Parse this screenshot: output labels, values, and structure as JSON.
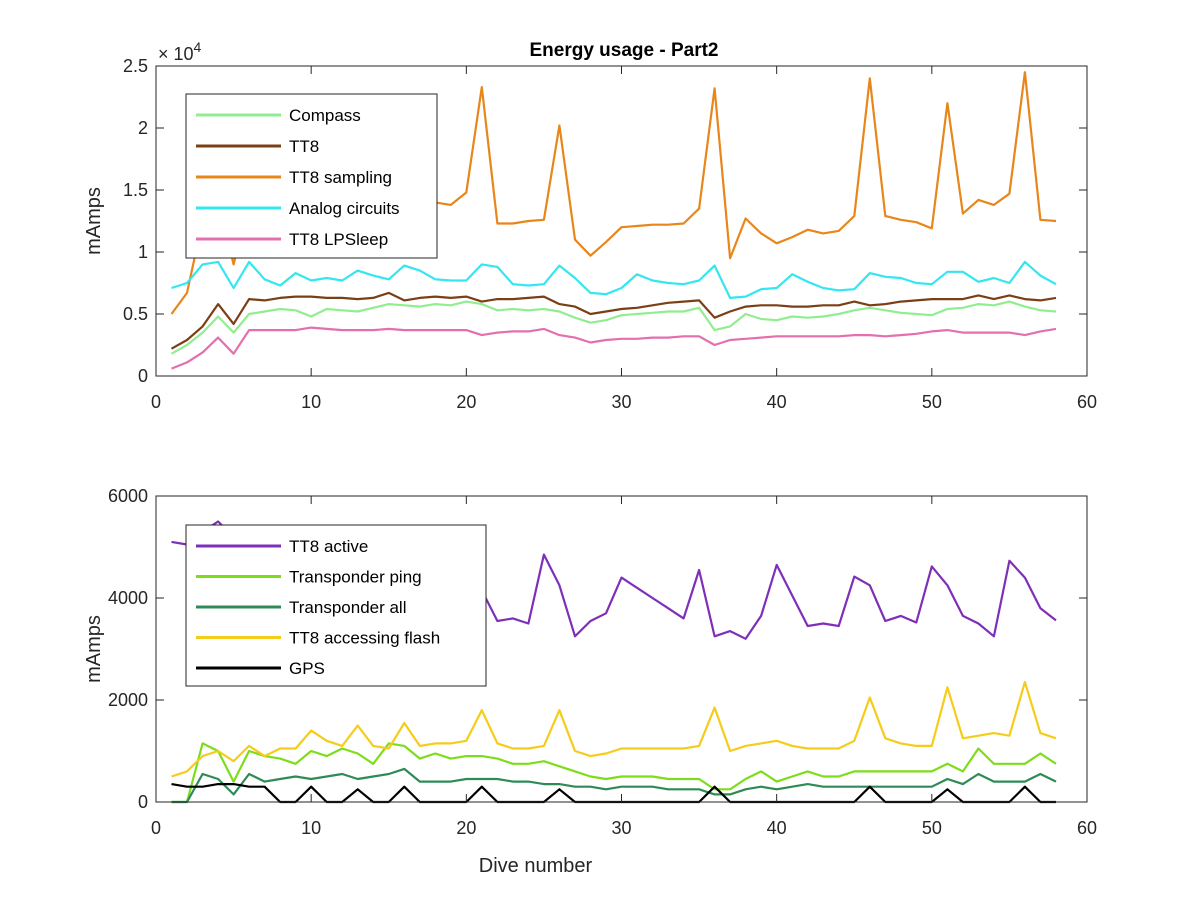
{
  "figure_title": "Energy usage - Part2",
  "chart_data": [
    {
      "type": "line",
      "title": "Energy usage - Part2",
      "xlabel": "",
      "ylabel": "mAmps",
      "xlim": [
        0,
        60
      ],
      "ylim": [
        0,
        25000
      ],
      "xticks": [
        0,
        10,
        20,
        30,
        40,
        50,
        60
      ],
      "xtick_labels": [
        "0",
        "10",
        "20",
        "30",
        "40",
        "50",
        "60"
      ],
      "yticks": [
        0,
        5000,
        10000,
        15000,
        20000,
        25000
      ],
      "ytick_labels": [
        "0",
        "0.5",
        "1",
        "1.5",
        "2",
        "2.5"
      ],
      "exponent_label": "× 10",
      "exponent_power": "4",
      "grid": false,
      "legend_position": "top-left",
      "x": [
        1,
        2,
        3,
        4,
        5,
        6,
        7,
        8,
        9,
        10,
        11,
        12,
        13,
        14,
        15,
        16,
        17,
        18,
        19,
        20,
        21,
        22,
        23,
        24,
        25,
        26,
        27,
        28,
        29,
        30,
        31,
        32,
        33,
        34,
        35,
        36,
        37,
        38,
        39,
        40,
        41,
        42,
        43,
        44,
        45,
        46,
        47,
        48,
        49,
        50,
        51,
        52,
        53,
        54,
        55,
        56,
        57,
        58
      ],
      "series": [
        {
          "name": "Compass",
          "color": "#90ee90",
          "values": [
            1800,
            2500,
            3500,
            4800,
            3500,
            5000,
            5200,
            5400,
            5300,
            4800,
            5400,
            5300,
            5200,
            5500,
            5800,
            5700,
            5600,
            5800,
            5700,
            6000,
            5800,
            5300,
            5400,
            5300,
            5400,
            5200,
            4700,
            4300,
            4500,
            4900,
            5000,
            5100,
            5200,
            5200,
            5500,
            3700,
            4000,
            5000,
            4600,
            4500,
            4800,
            4700,
            4800,
            5000,
            5300,
            5500,
            5300,
            5100,
            5000,
            4900,
            5400,
            5500,
            5800,
            5700,
            6000,
            5600,
            5300,
            5200
          ]
        },
        {
          "name": "TT8",
          "color": "#7b3f16",
          "values": [
            2200,
            2900,
            4000,
            5800,
            4200,
            6200,
            6100,
            6300,
            6400,
            6400,
            6300,
            6300,
            6200,
            6300,
            6700,
            6100,
            6300,
            6400,
            6300,
            6400,
            6000,
            6200,
            6200,
            6300,
            6400,
            5800,
            5600,
            5000,
            5200,
            5400,
            5500,
            5700,
            5900,
            6000,
            6100,
            4700,
            5200,
            5600,
            5700,
            5700,
            5600,
            5600,
            5700,
            5700,
            6000,
            5700,
            5800,
            6000,
            6100,
            6200,
            6200,
            6200,
            6500,
            6200,
            6500,
            6200,
            6100,
            6300
          ]
        },
        {
          "name": "TT8 sampling",
          "color": "#e8861a",
          "values": [
            5000,
            6700,
            12500,
            14200,
            9000,
            14000,
            13300,
            14000,
            13800,
            13900,
            13700,
            13800,
            13900,
            13700,
            14300,
            13800,
            13900,
            14000,
            13800,
            14800,
            23300,
            12300,
            12300,
            12500,
            12600,
            20200,
            11000,
            9700,
            10800,
            12000,
            12100,
            12200,
            12200,
            12300,
            13500,
            23200,
            9500,
            12700,
            11500,
            10700,
            11200,
            11800,
            11500,
            11700,
            12900,
            24000,
            12900,
            12600,
            12400,
            11900,
            22000,
            13100,
            14200,
            13800,
            14700,
            24500,
            12600,
            12500
          ]
        },
        {
          "name": "Analog circuits",
          "color": "#33e6f0",
          "values": [
            7100,
            7500,
            9000,
            9200,
            7100,
            9200,
            7800,
            7300,
            8300,
            7700,
            7900,
            7700,
            8500,
            8100,
            7800,
            8900,
            8500,
            7800,
            7700,
            7700,
            9000,
            8800,
            7400,
            7300,
            7400,
            8900,
            7900,
            6700,
            6600,
            7100,
            8200,
            7700,
            7500,
            7400,
            7700,
            8900,
            6300,
            6400,
            7000,
            7100,
            8200,
            7600,
            7100,
            6900,
            7000,
            8300,
            8000,
            7900,
            7500,
            7400,
            8400,
            8400,
            7600,
            7900,
            7500,
            9200,
            8100,
            7400
          ]
        },
        {
          "name": "TT8 LPSleep",
          "color": "#e36faf",
          "values": [
            600,
            1100,
            1900,
            3100,
            1800,
            3700,
            3700,
            3700,
            3700,
            3900,
            3800,
            3700,
            3700,
            3700,
            3800,
            3700,
            3700,
            3700,
            3700,
            3700,
            3300,
            3500,
            3600,
            3600,
            3800,
            3300,
            3100,
            2700,
            2900,
            3000,
            3000,
            3100,
            3100,
            3200,
            3200,
            2500,
            2900,
            3000,
            3100,
            3200,
            3200,
            3200,
            3200,
            3200,
            3300,
            3300,
            3200,
            3300,
            3400,
            3600,
            3700,
            3500,
            3500,
            3500,
            3500,
            3300,
            3600,
            3800
          ]
        }
      ]
    },
    {
      "type": "line",
      "title": "",
      "xlabel": "Dive number",
      "ylabel": "mAmps",
      "xlim": [
        0,
        60
      ],
      "ylim": [
        0,
        6000
      ],
      "xticks": [
        0,
        10,
        20,
        30,
        40,
        50,
        60
      ],
      "xtick_labels": [
        "0",
        "10",
        "20",
        "30",
        "40",
        "50",
        "60"
      ],
      "yticks": [
        0,
        2000,
        4000,
        6000
      ],
      "ytick_labels": [
        "0",
        "2000",
        "4000",
        "6000"
      ],
      "grid": false,
      "legend_position": "top-left",
      "x": [
        1,
        2,
        3,
        4,
        5,
        6,
        7,
        8,
        9,
        10,
        11,
        12,
        13,
        14,
        15,
        16,
        17,
        18,
        19,
        20,
        21,
        22,
        23,
        24,
        25,
        26,
        27,
        28,
        29,
        30,
        31,
        32,
        33,
        34,
        35,
        36,
        37,
        38,
        39,
        40,
        41,
        42,
        43,
        44,
        45,
        46,
        47,
        48,
        49,
        50,
        51,
        52,
        53,
        54,
        55,
        56,
        57,
        58
      ],
      "series": [
        {
          "name": "TT8 active",
          "color": "#7e2fb8",
          "values": [
            5100,
            5050,
            5300,
            5500,
            5200,
            5000,
            4900,
            4800,
            4700,
            4600,
            4500,
            4400,
            4300,
            4200,
            4100,
            4050,
            4000,
            3950,
            3900,
            3850,
            4150,
            3550,
            3600,
            3500,
            4850,
            4250,
            3250,
            3550,
            3700,
            4400,
            4200,
            4000,
            3800,
            3600,
            4550,
            3250,
            3350,
            3200,
            3650,
            4650,
            4050,
            3450,
            3500,
            3450,
            4420,
            4250,
            3550,
            3650,
            3520,
            4620,
            4250,
            3650,
            3500,
            3250,
            4730,
            4400,
            3800,
            3560
          ]
        },
        {
          "name": "Transponder ping",
          "color": "#7ddd1a",
          "values": [
            0,
            0,
            1150,
            1000,
            400,
            1000,
            900,
            850,
            750,
            1000,
            900,
            1050,
            950,
            750,
            1150,
            1100,
            850,
            950,
            850,
            900,
            900,
            850,
            750,
            750,
            800,
            700,
            600,
            500,
            450,
            500,
            500,
            500,
            450,
            450,
            450,
            250,
            250,
            450,
            600,
            400,
            500,
            600,
            500,
            500,
            600,
            600,
            600,
            600,
            600,
            600,
            750,
            600,
            1050,
            750,
            750,
            750,
            950,
            750
          ]
        },
        {
          "name": "Transponder all",
          "color": "#2e8b57",
          "values": [
            0,
            0,
            550,
            450,
            150,
            550,
            400,
            450,
            500,
            450,
            500,
            550,
            450,
            500,
            550,
            650,
            400,
            400,
            400,
            450,
            450,
            450,
            400,
            400,
            350,
            350,
            300,
            300,
            250,
            300,
            300,
            300,
            250,
            250,
            250,
            150,
            150,
            250,
            300,
            250,
            300,
            350,
            300,
            300,
            300,
            300,
            300,
            300,
            300,
            300,
            450,
            350,
            550,
            400,
            400,
            400,
            550,
            400
          ]
        },
        {
          "name": "TT8 accessing flash",
          "color": "#f5cc1a",
          "values": [
            500,
            600,
            900,
            1000,
            800,
            1100,
            900,
            1050,
            1050,
            1400,
            1200,
            1100,
            1500,
            1100,
            1050,
            1550,
            1100,
            1150,
            1150,
            1200,
            1800,
            1150,
            1050,
            1050,
            1100,
            1800,
            1000,
            900,
            950,
            1050,
            1050,
            1050,
            1050,
            1050,
            1100,
            1850,
            1000,
            1100,
            1150,
            1200,
            1100,
            1050,
            1050,
            1050,
            1200,
            2050,
            1250,
            1150,
            1100,
            1100,
            2250,
            1250,
            1300,
            1350,
            1300,
            2350,
            1350,
            1250
          ]
        },
        {
          "name": "GPS",
          "color": "#000000",
          "values": [
            350,
            300,
            300,
            350,
            350,
            300,
            300,
            0,
            0,
            300,
            0,
            0,
            250,
            0,
            0,
            300,
            0,
            0,
            0,
            0,
            300,
            0,
            0,
            0,
            0,
            250,
            0,
            0,
            0,
            0,
            0,
            0,
            0,
            0,
            0,
            300,
            0,
            0,
            0,
            0,
            0,
            0,
            0,
            0,
            0,
            300,
            0,
            0,
            0,
            0,
            250,
            0,
            0,
            0,
            0,
            300,
            0,
            0
          ]
        }
      ]
    }
  ]
}
